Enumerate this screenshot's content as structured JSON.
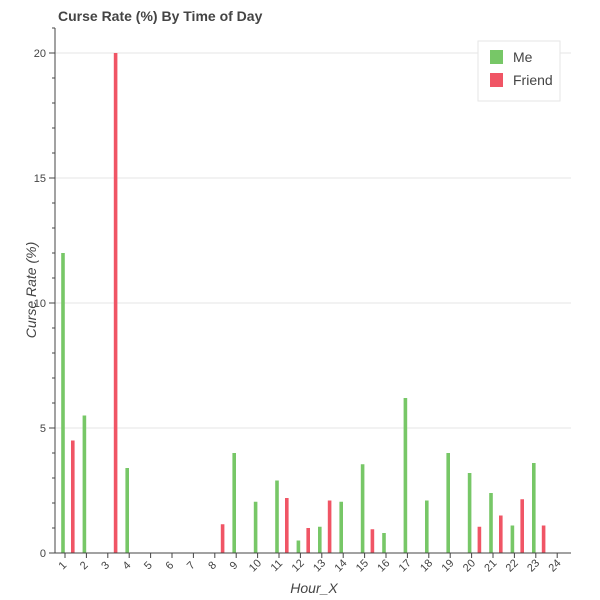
{
  "chart_data": {
    "type": "bar",
    "title": "Curse Rate (%) By Time of Day",
    "xlabel": "Hour_X",
    "ylabel": "Curse Rate (%)",
    "categories": [
      "1",
      "2",
      "3",
      "4",
      "5",
      "6",
      "7",
      "8",
      "9",
      "10",
      "11",
      "12",
      "13",
      "14",
      "15",
      "16",
      "17",
      "18",
      "19",
      "20",
      "21",
      "22",
      "23",
      "24"
    ],
    "ylim": [
      0,
      21
    ],
    "yticks": [
      0,
      5,
      10,
      15,
      20
    ],
    "grid": true,
    "legend_position": "top-right",
    "series": [
      {
        "name": "Me",
        "color": "#77c767",
        "values": [
          12.0,
          5.5,
          0,
          3.4,
          0,
          0,
          0,
          0,
          4.0,
          2.05,
          2.9,
          0.5,
          1.05,
          2.05,
          3.55,
          0.8,
          6.2,
          2.1,
          4.0,
          3.2,
          2.4,
          1.1,
          3.6,
          0
        ]
      },
      {
        "name": "Friend",
        "color": "#f05565",
        "values": [
          4.5,
          0,
          20.0,
          0,
          0,
          0,
          0,
          1.15,
          0,
          0,
          2.2,
          1.0,
          2.1,
          0,
          0.95,
          0,
          0,
          0,
          0,
          1.05,
          1.5,
          2.15,
          1.1,
          0
        ]
      }
    ]
  }
}
